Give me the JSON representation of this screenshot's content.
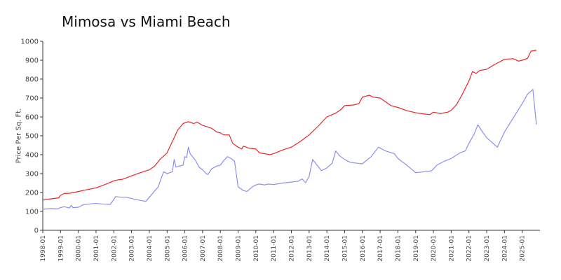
{
  "chart_data": {
    "type": "line",
    "title": "Mimosa vs Miami Beach",
    "ylabel": "Price Per Sq. Ft.",
    "xlabel": "",
    "ylim": [
      0,
      1000
    ],
    "y_ticks": [
      "0",
      "100",
      "200",
      "300",
      "400",
      "500",
      "600",
      "700",
      "800",
      "900",
      "1000"
    ],
    "x_tick_labels": [
      "1998-01",
      "1999-01",
      "2000-01",
      "2001-01",
      "2002-01",
      "2003-01",
      "2004-01",
      "2005-01",
      "2006-01",
      "2007-01",
      "2008-01",
      "2009-01",
      "2010-01",
      "2011-01",
      "2012-01",
      "2013-01",
      "2014-01",
      "2015-01",
      "2016-01",
      "2017-01",
      "2018-01",
      "2019-01",
      "2020-01",
      "2021-01",
      "2022-01",
      "2023-01",
      "2024-01",
      "2025-01"
    ],
    "x_range": [
      1998.0,
      2026.0
    ],
    "grid": false,
    "legend": "none",
    "series": [
      {
        "color": "#e8262b",
        "points": [
          [
            1998.0,
            160
          ],
          [
            1998.5,
            167
          ],
          [
            1998.9,
            172
          ],
          [
            1999.0,
            185
          ],
          [
            1999.2,
            195
          ],
          [
            1999.5,
            196
          ],
          [
            2000.0,
            205
          ],
          [
            2000.5,
            215
          ],
          [
            2001.0,
            225
          ],
          [
            2001.5,
            242
          ],
          [
            2002.0,
            262
          ],
          [
            2002.3,
            268
          ],
          [
            2002.5,
            270
          ],
          [
            2003.0,
            288
          ],
          [
            2003.5,
            305
          ],
          [
            2004.0,
            320
          ],
          [
            2004.3,
            340
          ],
          [
            2004.6,
            375
          ],
          [
            2005.0,
            410
          ],
          [
            2005.3,
            470
          ],
          [
            2005.6,
            530
          ],
          [
            2005.9,
            565
          ],
          [
            2006.2,
            575
          ],
          [
            2006.5,
            565
          ],
          [
            2006.7,
            572
          ],
          [
            2007.0,
            555
          ],
          [
            2007.5,
            540
          ],
          [
            2007.8,
            520
          ],
          [
            2008.0,
            515
          ],
          [
            2008.2,
            505
          ],
          [
            2008.5,
            505
          ],
          [
            2008.7,
            460
          ],
          [
            2009.0,
            440
          ],
          [
            2009.2,
            430
          ],
          [
            2009.3,
            445
          ],
          [
            2009.6,
            435
          ],
          [
            2010.0,
            430
          ],
          [
            2010.2,
            410
          ],
          [
            2010.5,
            405
          ],
          [
            2010.8,
            400
          ],
          [
            2011.0,
            405
          ],
          [
            2011.5,
            425
          ],
          [
            2012.0,
            440
          ],
          [
            2012.5,
            470
          ],
          [
            2013.0,
            505
          ],
          [
            2013.5,
            550
          ],
          [
            2014.0,
            600
          ],
          [
            2014.5,
            620
          ],
          [
            2014.8,
            640
          ],
          [
            2015.0,
            660
          ],
          [
            2015.5,
            663
          ],
          [
            2015.8,
            670
          ],
          [
            2016.0,
            705
          ],
          [
            2016.4,
            715
          ],
          [
            2016.6,
            705
          ],
          [
            2017.0,
            700
          ],
          [
            2017.3,
            680
          ],
          [
            2017.6,
            660
          ],
          [
            2018.0,
            650
          ],
          [
            2018.5,
            633
          ],
          [
            2019.0,
            622
          ],
          [
            2019.5,
            615
          ],
          [
            2019.8,
            612
          ],
          [
            2020.0,
            625
          ],
          [
            2020.4,
            618
          ],
          [
            2020.8,
            625
          ],
          [
            2021.0,
            635
          ],
          [
            2021.3,
            665
          ],
          [
            2021.6,
            715
          ],
          [
            2022.0,
            790
          ],
          [
            2022.2,
            840
          ],
          [
            2022.4,
            830
          ],
          [
            2022.6,
            845
          ],
          [
            2023.0,
            852
          ],
          [
            2023.5,
            880
          ],
          [
            2024.0,
            905
          ],
          [
            2024.5,
            908
          ],
          [
            2024.8,
            895
          ],
          [
            2025.0,
            900
          ],
          [
            2025.3,
            910
          ],
          [
            2025.5,
            948
          ],
          [
            2025.8,
            952
          ]
        ]
      },
      {
        "color": "#8a8ef2",
        "points": [
          [
            1998.0,
            112
          ],
          [
            1998.5,
            115
          ],
          [
            1998.8,
            113
          ],
          [
            1999.0,
            120
          ],
          [
            1999.2,
            125
          ],
          [
            1999.5,
            118
          ],
          [
            1999.6,
            132
          ],
          [
            1999.7,
            120
          ],
          [
            2000.0,
            122
          ],
          [
            2000.3,
            136
          ],
          [
            2000.7,
            140
          ],
          [
            2001.0,
            142
          ],
          [
            2001.5,
            138
          ],
          [
            2001.8,
            137
          ],
          [
            2002.0,
            163
          ],
          [
            2002.1,
            178
          ],
          [
            2002.4,
            175
          ],
          [
            2002.7,
            175
          ],
          [
            2003.0,
            168
          ],
          [
            2003.5,
            158
          ],
          [
            2003.8,
            153
          ],
          [
            2004.0,
            175
          ],
          [
            2004.5,
            230
          ],
          [
            2004.8,
            310
          ],
          [
            2005.0,
            300
          ],
          [
            2005.3,
            310
          ],
          [
            2005.4,
            375
          ],
          [
            2005.5,
            335
          ],
          [
            2005.9,
            345
          ],
          [
            2006.0,
            390
          ],
          [
            2006.1,
            385
          ],
          [
            2006.2,
            440
          ],
          [
            2006.3,
            405
          ],
          [
            2006.6,
            370
          ],
          [
            2006.8,
            335
          ],
          [
            2007.0,
            320
          ],
          [
            2007.2,
            300
          ],
          [
            2007.3,
            295
          ],
          [
            2007.5,
            325
          ],
          [
            2007.8,
            340
          ],
          [
            2008.0,
            345
          ],
          [
            2008.2,
            370
          ],
          [
            2008.4,
            390
          ],
          [
            2008.6,
            380
          ],
          [
            2008.8,
            365
          ],
          [
            2009.0,
            230
          ],
          [
            2009.3,
            210
          ],
          [
            2009.5,
            205
          ],
          [
            2009.8,
            230
          ],
          [
            2010.0,
            240
          ],
          [
            2010.2,
            245
          ],
          [
            2010.5,
            240
          ],
          [
            2010.7,
            245
          ],
          [
            2011.0,
            242
          ],
          [
            2011.5,
            250
          ],
          [
            2012.0,
            255
          ],
          [
            2012.4,
            260
          ],
          [
            2012.6,
            272
          ],
          [
            2012.8,
            252
          ],
          [
            2013.0,
            285
          ],
          [
            2013.2,
            375
          ],
          [
            2013.4,
            350
          ],
          [
            2013.7,
            315
          ],
          [
            2014.0,
            330
          ],
          [
            2014.3,
            355
          ],
          [
            2014.5,
            420
          ],
          [
            2014.7,
            395
          ],
          [
            2015.0,
            375
          ],
          [
            2015.3,
            360
          ],
          [
            2015.7,
            355
          ],
          [
            2016.0,
            352
          ],
          [
            2016.5,
            390
          ],
          [
            2016.9,
            440
          ],
          [
            2017.3,
            420
          ],
          [
            2017.8,
            405
          ],
          [
            2018.0,
            380
          ],
          [
            2018.5,
            345
          ],
          [
            2019.0,
            305
          ],
          [
            2019.5,
            310
          ],
          [
            2019.9,
            315
          ],
          [
            2020.2,
            345
          ],
          [
            2020.6,
            365
          ],
          [
            2021.0,
            380
          ],
          [
            2021.5,
            410
          ],
          [
            2021.8,
            420
          ],
          [
            2022.0,
            460
          ],
          [
            2022.3,
            510
          ],
          [
            2022.5,
            558
          ],
          [
            2022.7,
            530
          ],
          [
            2023.0,
            490
          ],
          [
            2023.6,
            440
          ],
          [
            2024.0,
            520
          ],
          [
            2024.5,
            595
          ],
          [
            2025.0,
            670
          ],
          [
            2025.3,
            720
          ],
          [
            2025.6,
            745
          ],
          [
            2025.8,
            560
          ]
        ]
      }
    ]
  }
}
